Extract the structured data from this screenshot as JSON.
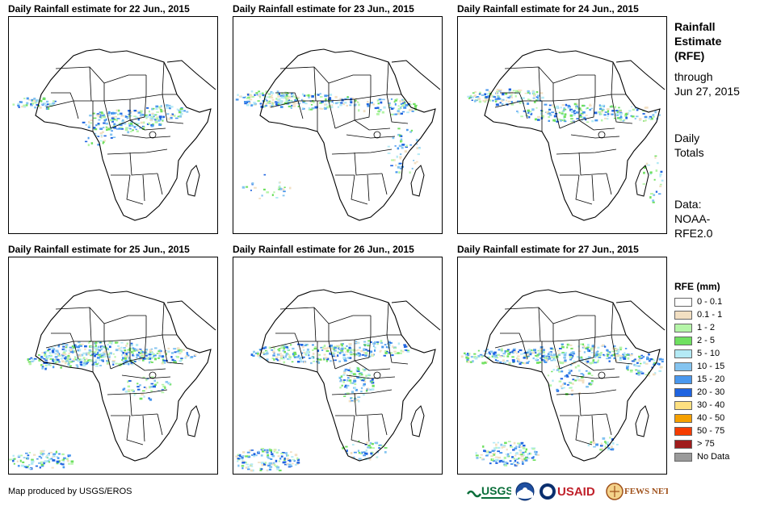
{
  "panels": [
    {
      "title": "Daily Rainfall estimate for 22 Jun., 2015"
    },
    {
      "title": "Daily Rainfall estimate for 23 Jun., 2015"
    },
    {
      "title": "Daily Rainfall estimate for 24 Jun., 2015"
    },
    {
      "title": "Daily Rainfall estimate for 25 Jun., 2015"
    },
    {
      "title": "Daily Rainfall estimate for 26 Jun., 2015"
    },
    {
      "title": "Daily Rainfall estimate for 27 Jun., 2015"
    }
  ],
  "side": {
    "title_line1": "Rainfall",
    "title_line2": "Estimate",
    "title_line3": "(RFE)",
    "through_line1": "through",
    "through_line2": "Jun 27, 2015",
    "daily_line1": "Daily",
    "daily_line2": "Totals",
    "data_line1": "Data:",
    "data_line2": "NOAA-",
    "data_line3": "RFE2.0"
  },
  "legend": {
    "title": "RFE (mm)",
    "items": [
      {
        "label": "0 - 0.1",
        "color": "#ffffff"
      },
      {
        "label": "0.1 - 1",
        "color": "#f2dfc2"
      },
      {
        "label": "1 - 2",
        "color": "#b5f5a8"
      },
      {
        "label": "2 - 5",
        "color": "#6fe060"
      },
      {
        "label": "5 - 10",
        "color": "#b4eaf5"
      },
      {
        "label": "10 - 15",
        "color": "#84c4f0"
      },
      {
        "label": "15 - 20",
        "color": "#4a98ee"
      },
      {
        "label": "20 - 30",
        "color": "#1e63e0"
      },
      {
        "label": "30 - 40",
        "color": "#fde080"
      },
      {
        "label": "40 - 50",
        "color": "#f5a000"
      },
      {
        "label": "50 - 75",
        "color": "#f53c00"
      },
      {
        "label": "> 75",
        "color": "#a01c1c"
      },
      {
        "label": "No Data",
        "color": "#9a9a9a"
      }
    ]
  },
  "credit": "Map produced by USGS/EROS",
  "logos": {
    "usgs": "USGS",
    "usaid": "USAID",
    "fewsnet": "FEWS NET"
  }
}
